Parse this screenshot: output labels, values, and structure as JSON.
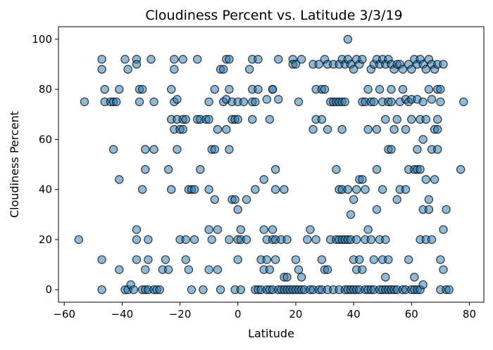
{
  "chart_data": {
    "type": "scatter",
    "title": "Cloudiness Percent vs. Latitude 3/3/19",
    "xlabel": "Latitude",
    "ylabel": "Cloudiness Percent",
    "xlim": [
      -62,
      85
    ],
    "ylim": [
      -5,
      105
    ],
    "x_ticks": [
      -60,
      -40,
      -20,
      0,
      20,
      40,
      60,
      80
    ],
    "y_ticks": [
      0,
      20,
      40,
      60,
      80,
      100
    ],
    "grid": false,
    "marker_color": "#1f77b4",
    "points": [
      [
        -55,
        20
      ],
      [
        -53,
        75
      ],
      [
        -47,
        92
      ],
      [
        -47,
        88
      ],
      [
        -47,
        12
      ],
      [
        -47,
        0
      ],
      [
        -46,
        80
      ],
      [
        -46,
        75
      ],
      [
        -44,
        75
      ],
      [
        -43,
        75
      ],
      [
        -43,
        56
      ],
      [
        -42,
        75
      ],
      [
        -41,
        44
      ],
      [
        -41,
        8
      ],
      [
        -41,
        80
      ],
      [
        -39,
        92
      ],
      [
        -38,
        88
      ],
      [
        -39,
        0
      ],
      [
        -38,
        0
      ],
      [
        -37,
        2
      ],
      [
        -36,
        0
      ],
      [
        -35,
        92
      ],
      [
        -35,
        90
      ],
      [
        -35,
        20
      ],
      [
        -35,
        24
      ],
      [
        -35,
        12
      ],
      [
        -34,
        80
      ],
      [
        -34,
        75
      ],
      [
        -33,
        80
      ],
      [
        -33,
        40
      ],
      [
        -33,
        0
      ],
      [
        -32,
        56
      ],
      [
        -32,
        48
      ],
      [
        -32,
        8
      ],
      [
        -32,
        0
      ],
      [
        -31,
        20
      ],
      [
        -31,
        12
      ],
      [
        -31,
        0
      ],
      [
        -30,
        92
      ],
      [
        -29,
        75
      ],
      [
        -29,
        56
      ],
      [
        -29,
        0
      ],
      [
        -28,
        0
      ],
      [
        -27,
        0
      ],
      [
        -26,
        8
      ],
      [
        -25,
        12
      ],
      [
        -24,
        48
      ],
      [
        -24,
        8
      ],
      [
        -23,
        80
      ],
      [
        -23,
        68
      ],
      [
        -23,
        40
      ],
      [
        -22,
        92
      ],
      [
        -22,
        88
      ],
      [
        -22,
        75
      ],
      [
        -22,
        64
      ],
      [
        -21,
        76
      ],
      [
        -21,
        56
      ],
      [
        -21,
        68
      ],
      [
        -20,
        64
      ],
      [
        -20,
        20
      ],
      [
        -19,
        92
      ],
      [
        -19,
        68
      ],
      [
        -19,
        64
      ],
      [
        -18,
        68
      ],
      [
        -18,
        20
      ],
      [
        -18,
        12
      ],
      [
        -17,
        40
      ],
      [
        -17,
        8
      ],
      [
        -16,
        40
      ],
      [
        -16,
        0
      ],
      [
        -15,
        40
      ],
      [
        -15,
        20
      ],
      [
        -14,
        92
      ],
      [
        -14,
        68
      ],
      [
        -13,
        48
      ],
      [
        -13,
        68
      ],
      [
        -12,
        0
      ],
      [
        -11,
        68
      ],
      [
        -10,
        75
      ],
      [
        -10,
        68
      ],
      [
        -10,
        40
      ],
      [
        -10,
        24
      ],
      [
        -10,
        8
      ],
      [
        -9,
        56
      ],
      [
        -9,
        20
      ],
      [
        -8,
        80
      ],
      [
        -8,
        56
      ],
      [
        -8,
        36
      ],
      [
        -7,
        64
      ],
      [
        -7,
        24
      ],
      [
        -7,
        8
      ],
      [
        -6,
        88
      ],
      [
        -6,
        0
      ],
      [
        -5,
        88
      ],
      [
        -5,
        75
      ],
      [
        -4,
        92
      ],
      [
        -4,
        76
      ],
      [
        -4,
        64
      ],
      [
        -3,
        80
      ],
      [
        -3,
        92
      ],
      [
        -3,
        56
      ],
      [
        -3,
        20
      ],
      [
        -2,
        68
      ],
      [
        -2,
        36
      ],
      [
        -2,
        75
      ],
      [
        -1,
        68
      ],
      [
        -1,
        36
      ],
      [
        -1,
        0
      ],
      [
        0,
        75
      ],
      [
        0,
        68
      ],
      [
        0,
        32
      ],
      [
        0,
        20
      ],
      [
        0,
        12
      ],
      [
        1,
        24
      ],
      [
        1,
        20
      ],
      [
        1,
        0
      ],
      [
        2,
        75
      ],
      [
        3,
        36
      ],
      [
        3,
        20
      ],
      [
        4,
        88
      ],
      [
        5,
        92
      ],
      [
        5,
        80
      ],
      [
        5,
        75
      ],
      [
        5,
        68
      ],
      [
        6,
        75
      ],
      [
        6,
        40
      ],
      [
        6,
        0
      ],
      [
        7,
        92
      ],
      [
        7,
        80
      ],
      [
        7,
        0
      ],
      [
        8,
        12
      ],
      [
        8,
        0
      ],
      [
        9,
        44
      ],
      [
        9,
        24
      ],
      [
        9,
        8
      ],
      [
        10,
        76
      ],
      [
        10,
        20
      ],
      [
        10,
        0
      ],
      [
        10,
        12
      ],
      [
        11,
        68
      ],
      [
        11,
        8
      ],
      [
        11,
        0
      ],
      [
        12,
        80
      ],
      [
        12,
        80
      ],
      [
        12,
        24
      ],
      [
        12,
        20
      ],
      [
        12,
        0
      ],
      [
        13,
        48
      ],
      [
        13,
        40
      ],
      [
        13,
        20
      ],
      [
        13,
        12
      ],
      [
        14,
        92
      ],
      [
        14,
        76
      ],
      [
        14,
        0
      ],
      [
        15,
        20
      ],
      [
        15,
        0
      ],
      [
        16,
        5
      ],
      [
        16,
        40
      ],
      [
        16,
        0
      ],
      [
        17,
        20
      ],
      [
        17,
        5
      ],
      [
        17,
        0
      ],
      [
        18,
        0
      ],
      [
        19,
        92
      ],
      [
        19,
        90
      ],
      [
        19,
        0
      ],
      [
        20,
        90
      ],
      [
        20,
        12
      ],
      [
        20,
        0
      ],
      [
        21,
        75
      ],
      [
        21,
        8
      ],
      [
        21,
        0
      ],
      [
        22,
        92
      ],
      [
        22,
        5
      ],
      [
        22,
        0
      ],
      [
        23,
        0
      ],
      [
        24,
        20
      ],
      [
        25,
        24
      ],
      [
        25,
        0
      ],
      [
        26,
        90
      ],
      [
        26,
        64
      ],
      [
        26,
        0
      ],
      [
        27,
        68
      ],
      [
        27,
        80
      ],
      [
        27,
        20
      ],
      [
        28,
        90
      ],
      [
        28,
        0
      ],
      [
        29,
        80
      ],
      [
        29,
        68
      ],
      [
        29,
        12
      ],
      [
        29,
        0
      ],
      [
        30,
        92
      ],
      [
        30,
        80
      ],
      [
        30,
        8
      ],
      [
        31,
        90
      ],
      [
        31,
        64
      ],
      [
        31,
        8
      ],
      [
        31,
        0
      ],
      [
        32,
        75
      ],
      [
        32,
        20
      ],
      [
        33,
        90
      ],
      [
        33,
        75
      ],
      [
        33,
        0
      ],
      [
        34,
        48
      ],
      [
        34,
        75
      ],
      [
        34,
        20
      ],
      [
        35,
        90
      ],
      [
        35,
        40
      ],
      [
        35,
        75
      ],
      [
        35,
        20
      ],
      [
        35,
        0
      ],
      [
        36,
        92
      ],
      [
        36,
        75
      ],
      [
        36,
        40
      ],
      [
        36,
        20
      ],
      [
        36,
        64
      ],
      [
        37,
        90
      ],
      [
        37,
        75
      ],
      [
        37,
        20
      ],
      [
        37,
        0
      ],
      [
        38,
        100
      ],
      [
        38,
        92
      ],
      [
        38,
        40
      ],
      [
        38,
        20
      ],
      [
        38,
        0
      ],
      [
        39,
        90
      ],
      [
        39,
        30
      ],
      [
        39,
        20
      ],
      [
        39,
        0
      ],
      [
        40,
        88
      ],
      [
        40,
        36
      ],
      [
        40,
        12
      ],
      [
        40,
        0
      ],
      [
        41,
        92
      ],
      [
        41,
        40
      ],
      [
        41,
        20
      ],
      [
        41,
        8
      ],
      [
        41,
        0
      ],
      [
        42,
        90
      ],
      [
        42,
        44
      ],
      [
        42,
        12
      ],
      [
        42,
        0
      ],
      [
        43,
        92
      ],
      [
        43,
        75
      ],
      [
        43,
        44
      ],
      [
        43,
        8
      ],
      [
        44,
        75
      ],
      [
        44,
        40
      ],
      [
        44,
        20
      ],
      [
        44,
        0
      ],
      [
        45,
        80
      ],
      [
        45,
        64
      ],
      [
        45,
        24
      ],
      [
        45,
        0
      ],
      [
        46,
        88
      ],
      [
        46,
        75
      ],
      [
        46,
        20
      ],
      [
        46,
        0
      ],
      [
        47,
        90
      ],
      [
        47,
        75
      ],
      [
        47,
        12
      ],
      [
        47,
        0
      ],
      [
        48,
        92
      ],
      [
        48,
        64
      ],
      [
        48,
        48
      ],
      [
        48,
        32
      ],
      [
        49,
        90
      ],
      [
        49,
        80
      ],
      [
        49,
        20
      ],
      [
        49,
        0
      ],
      [
        50,
        92
      ],
      [
        50,
        75
      ],
      [
        50,
        40
      ],
      [
        50,
        12
      ],
      [
        50,
        0
      ],
      [
        51,
        90
      ],
      [
        51,
        68
      ],
      [
        51,
        20
      ],
      [
        51,
        5
      ],
      [
        51,
        0
      ],
      [
        52,
        92
      ],
      [
        52,
        75
      ],
      [
        52,
        56
      ],
      [
        52,
        12
      ],
      [
        52,
        0
      ],
      [
        53,
        90
      ],
      [
        53,
        80
      ],
      [
        53,
        56
      ],
      [
        53,
        75
      ],
      [
        53,
        0
      ],
      [
        54,
        88
      ],
      [
        54,
        64
      ],
      [
        54,
        0
      ],
      [
        55,
        90
      ],
      [
        55,
        68
      ],
      [
        55,
        36
      ],
      [
        55,
        0
      ],
      [
        56,
        90
      ],
      [
        56,
        75
      ],
      [
        56,
        40
      ],
      [
        57,
        88
      ],
      [
        57,
        80
      ],
      [
        57,
        0
      ],
      [
        58,
        76
      ],
      [
        58,
        64
      ],
      [
        58,
        40
      ],
      [
        58,
        0
      ],
      [
        59,
        90
      ],
      [
        59,
        75
      ],
      [
        59,
        48
      ],
      [
        59,
        12
      ],
      [
        60,
        88
      ],
      [
        60,
        68
      ],
      [
        60,
        76
      ],
      [
        60,
        0
      ],
      [
        61,
        92
      ],
      [
        61,
        48
      ],
      [
        61,
        5
      ],
      [
        61,
        0
      ],
      [
        62,
        90
      ],
      [
        62,
        76
      ],
      [
        62,
        56
      ],
      [
        62,
        48
      ],
      [
        62,
        0
      ],
      [
        63,
        92
      ],
      [
        63,
        68
      ],
      [
        63,
        48
      ],
      [
        63,
        20
      ],
      [
        63,
        0
      ],
      [
        64,
        90
      ],
      [
        64,
        75
      ],
      [
        64,
        60
      ],
      [
        64,
        32
      ],
      [
        64,
        2
      ],
      [
        65,
        88
      ],
      [
        65,
        68
      ],
      [
        65,
        44
      ],
      [
        65,
        20
      ],
      [
        66,
        92
      ],
      [
        66,
        80
      ],
      [
        66,
        36
      ],
      [
        66,
        32
      ],
      [
        67,
        90
      ],
      [
        67,
        76
      ],
      [
        67,
        56
      ],
      [
        67,
        20
      ],
      [
        68,
        88
      ],
      [
        68,
        64
      ],
      [
        68,
        44
      ],
      [
        69,
        90
      ],
      [
        69,
        80
      ],
      [
        69,
        68
      ],
      [
        69,
        64
      ],
      [
        69,
        56
      ],
      [
        70,
        80
      ],
      [
        70,
        75
      ],
      [
        70,
        12
      ],
      [
        70,
        0
      ],
      [
        71,
        90
      ],
      [
        71,
        24
      ],
      [
        71,
        8
      ],
      [
        72,
        32
      ],
      [
        72,
        0
      ],
      [
        73,
        0
      ],
      [
        77,
        48
      ],
      [
        78,
        75
      ]
    ]
  }
}
